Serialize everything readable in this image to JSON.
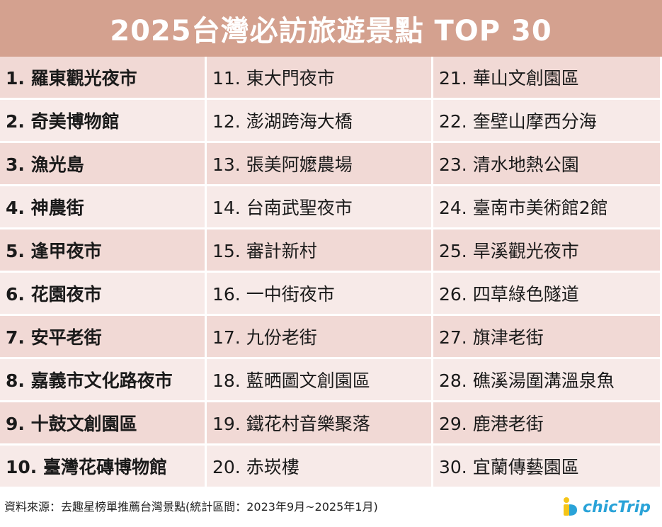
{
  "title": "2025台灣必訪旅遊景點 TOP 30",
  "columns": [
    [
      "1. 羅東觀光夜市",
      "2. 奇美博物館",
      "3. 漁光島",
      "4. 神農街",
      "5. 逢甲夜市",
      "6. 花園夜市",
      "7. 安平老街",
      "8. 嘉義市文化路夜市",
      "9. 十鼓文創園區",
      "10. 臺灣花磚博物館"
    ],
    [
      "11. 東大門夜市",
      "12. 澎湖跨海大橋",
      "13. 張美阿嬤農場",
      "14. 台南武聖夜市",
      "15. 審計新村",
      "16. 一中街夜市",
      "17. 九份老街",
      "18. 藍晒圖文創園區",
      "19. 鐵花村音樂聚落",
      "20. 赤崁樓"
    ],
    [
      "21. 華山文創園區",
      "22. 奎壁山摩西分海",
      "23. 清水地熱公園",
      "24. 臺南市美術館2館",
      "25. 旱溪觀光夜市",
      "26. 四草綠色隧道",
      "27. 旗津老街",
      "28. 礁溪湯圍溝溫泉魚",
      "29. 鹿港老街",
      "30. 宜蘭傳藝園區"
    ]
  ],
  "footer": {
    "source": "資料來源：去趣星榜單推薦台灣景點(統計區間：2023年9月~2025年1月)",
    "logo_chic": "chic",
    "logo_trip": "Trip"
  },
  "colors": {
    "title_bar": "#d4a18f",
    "row_odd": "#f1d9d5",
    "row_even": "#f7eae8",
    "logo_blue": "#2aa3d8",
    "logo_yellow": "#f5c518"
  }
}
